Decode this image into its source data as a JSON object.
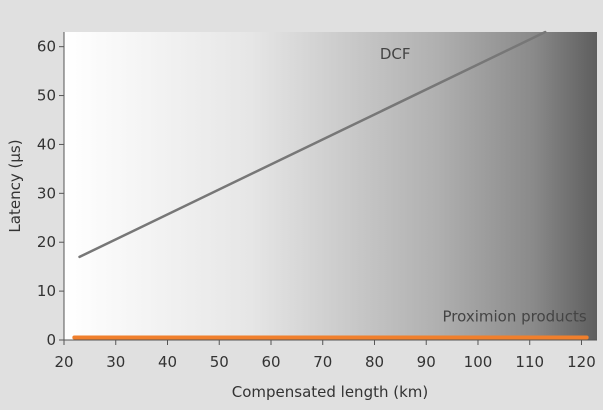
{
  "chart_data": {
    "type": "line",
    "title": "",
    "xlabel": "Compensated length (km)",
    "ylabel": "Latency (µs)",
    "xlim": [
      20,
      123
    ],
    "ylim": [
      0,
      63
    ],
    "xticks": [
      20,
      30,
      40,
      50,
      60,
      70,
      80,
      90,
      100,
      110,
      120
    ],
    "yticks": [
      0,
      10,
      20,
      30,
      40,
      50,
      60
    ],
    "grid": false,
    "legend": "none",
    "series": [
      {
        "name": "DCF",
        "color": "#777777",
        "x": [
          23,
          113
        ],
        "y": [
          17,
          63
        ]
      },
      {
        "name": "Proximion products",
        "color": "#f07f2c",
        "x": [
          22,
          121
        ],
        "y": [
          0.5,
          0.5
        ]
      }
    ]
  }
}
